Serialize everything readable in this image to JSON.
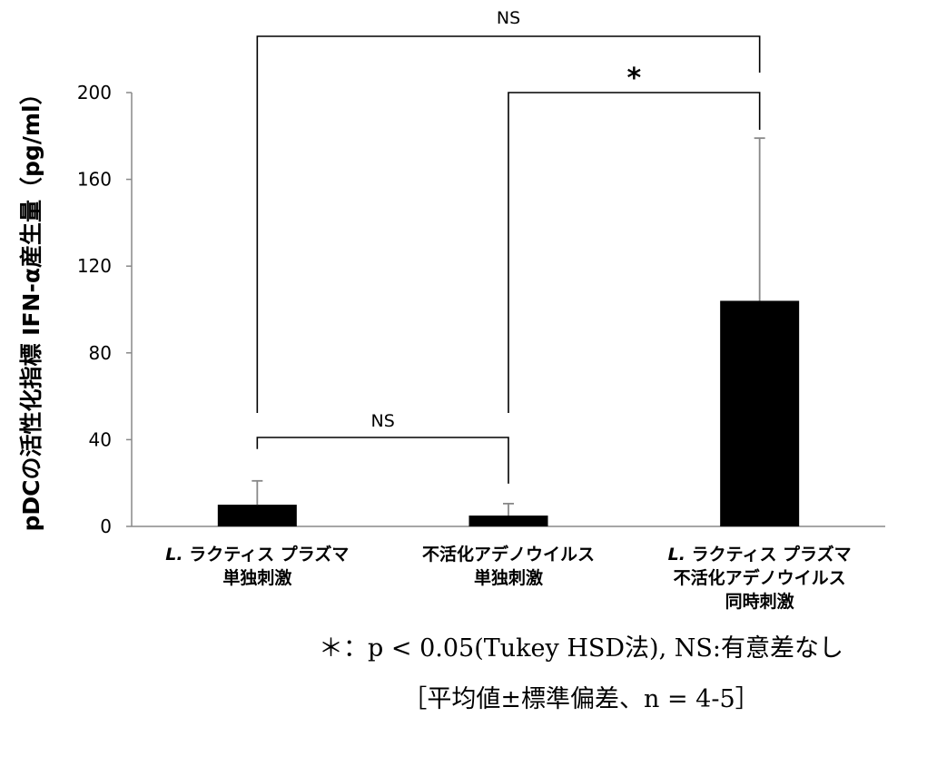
{
  "chart_data": {
    "type": "bar",
    "ylabel": "pDCの活性化指標 IFN-α産生量（pg/ml）",
    "ylim": [
      0,
      200
    ],
    "yticks": [
      "0",
      "40",
      "80",
      "120",
      "160",
      "200"
    ],
    "categories": [
      {
        "italic": "L.",
        "rest": " ラクティス プラズマ",
        "line2": "単独刺激",
        "line3": ""
      },
      {
        "italic": "",
        "rest": "不活化アデノウイルス",
        "line2": "単独刺激",
        "line3": ""
      },
      {
        "italic": "L.",
        "rest": " ラクティス プラズマ",
        "line2": "不活化アデノウイルス",
        "line3": "同時刺激"
      }
    ],
    "series": [
      {
        "values": [
          10,
          5,
          104
        ],
        "error_upper": [
          21,
          10.5,
          179
        ]
      }
    ],
    "significance": [
      {
        "between": [
          0,
          1
        ],
        "label": "NS"
      },
      {
        "between": [
          1,
          2
        ],
        "label": "*"
      },
      {
        "between": [
          0,
          2
        ],
        "label": "NS"
      }
    ],
    "bar_color": "#000000",
    "axis_color": "#888888",
    "bracket_color": "#000000",
    "grid": false
  },
  "footnotes": {
    "line1": "＊：p < 0.05(Tukey HSD法), NS:有意差なし",
    "line2": "［平均値±標準偏差、n = 4-5］"
  }
}
